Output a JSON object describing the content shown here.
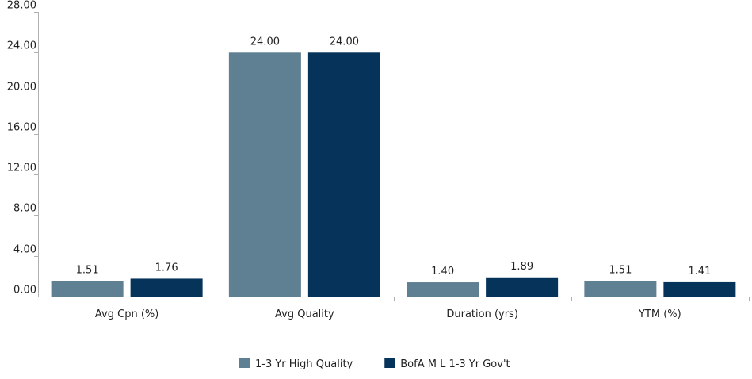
{
  "chart_data": {
    "type": "bar",
    "categories": [
      "Avg Cpn (%)",
      "Avg Quality",
      "Duration (yrs)",
      "YTM (%)"
    ],
    "series": [
      {
        "name": "1-3 Yr High Quality",
        "values": [
          1.51,
          24.0,
          1.4,
          1.51
        ],
        "color": "#5f7f92",
        "labels": [
          "1.51",
          "24.00",
          "1.40",
          "1.51"
        ]
      },
      {
        "name": "BofA M L 1-3 Yr Gov't",
        "values": [
          1.76,
          24.0,
          1.89,
          1.41
        ],
        "color": "#06335a",
        "labels": [
          "1.76",
          "24.00",
          "1.89",
          "1.41"
        ]
      }
    ],
    "ylim": [
      0,
      28
    ],
    "yticks": [
      0,
      4,
      8,
      12,
      16,
      20,
      24,
      28
    ],
    "ytick_labels": [
      "0.00",
      "4.00",
      "8.00",
      "12.00",
      "16.00",
      "20.00",
      "24.00",
      "28.00"
    ],
    "grid": false,
    "legend": "bottom-center",
    "axis_color": "#b0b0b0"
  }
}
